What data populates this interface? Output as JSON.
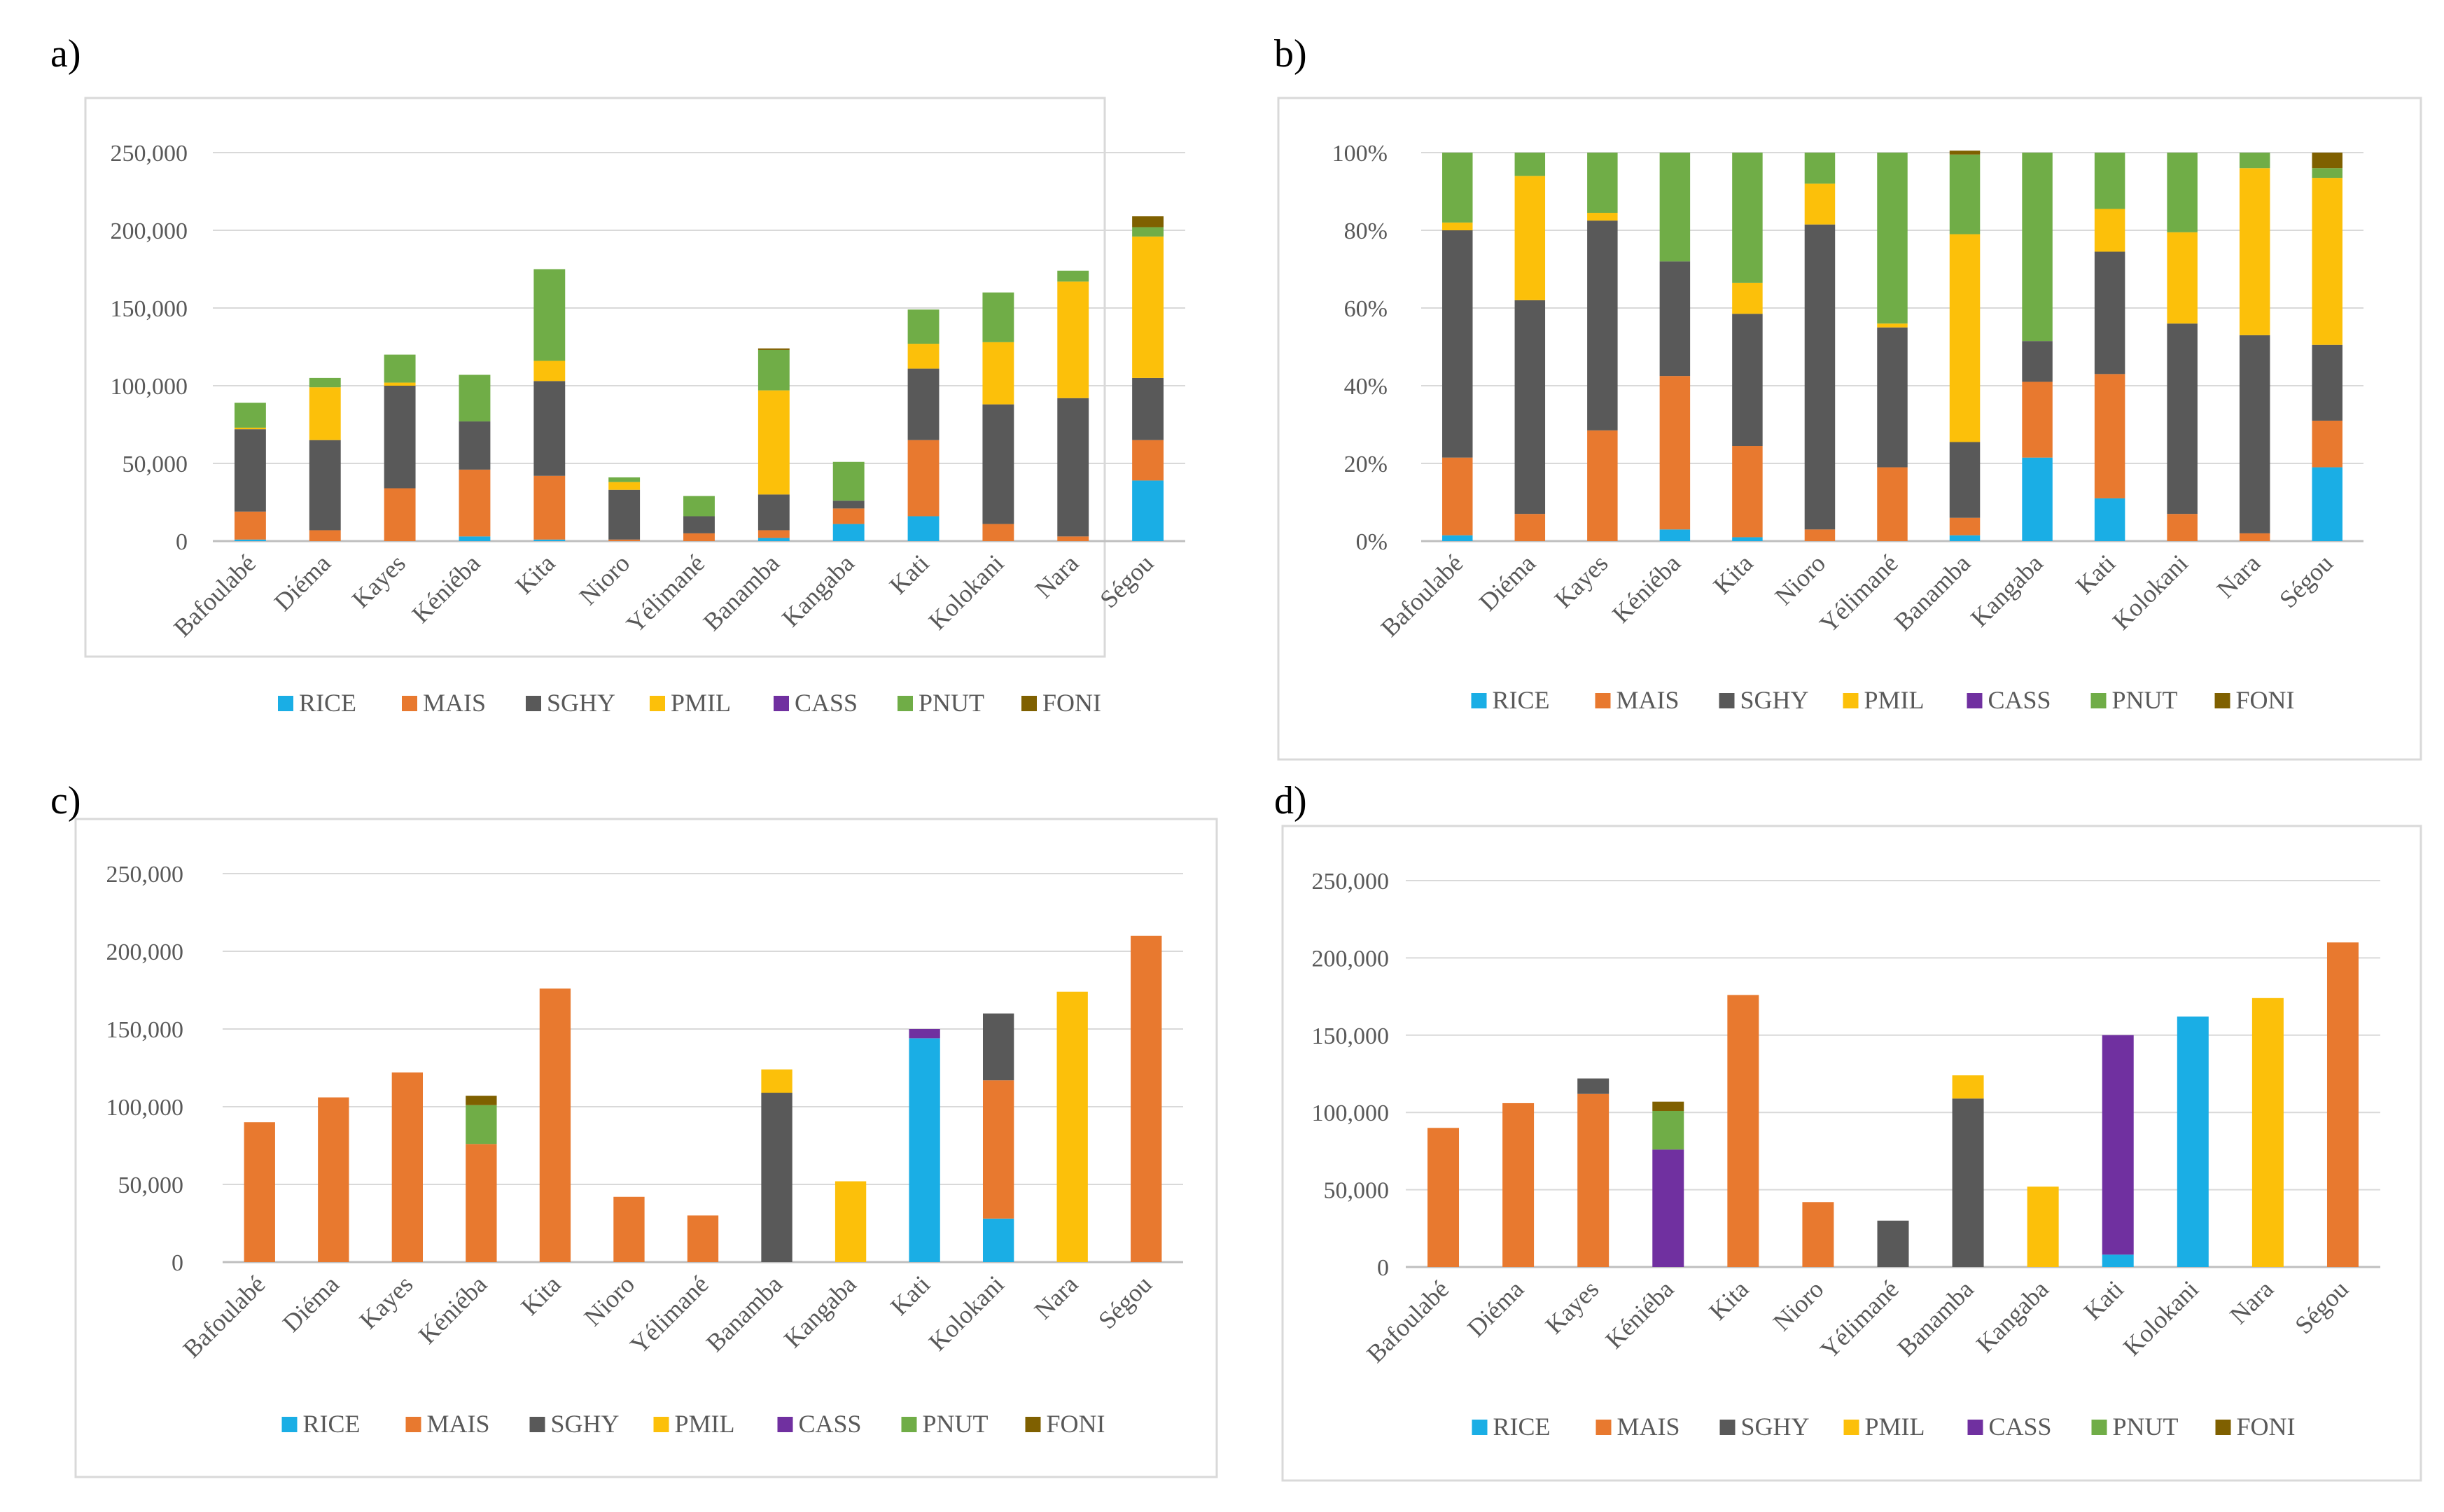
{
  "palette": {
    "RICE": "#1aaee5",
    "MAIS": "#e8792f",
    "SGHY": "#595959",
    "PMIL": "#fcc00a",
    "CASS": "#7030a0",
    "PNUT": "#70ad47",
    "FONI": "#7f6000"
  },
  "chart_data": [
    {
      "panel_label": "a)",
      "type": "bar",
      "stacked": true,
      "title": "",
      "xlabel": "",
      "ylabel": "",
      "ylim": [
        0,
        250000
      ],
      "yticks": [
        0,
        50000,
        100000,
        150000,
        200000,
        250000
      ],
      "ytick_labels": [
        "0",
        "50,000",
        "100,000",
        "150,000",
        "200,000",
        "250,000"
      ],
      "grid": true,
      "legend": "bottom",
      "categories": [
        "Bafoulabé",
        "Diéma",
        "Kayes",
        "Kéniéba",
        "Kita",
        "Nioro",
        "Yélimané",
        "Banamba",
        "Kangaba",
        "Kati",
        "Kolokani",
        "Nara",
        "Ségou"
      ],
      "series": [
        {
          "name": "RICE",
          "values": [
            1000,
            0,
            0,
            3000,
            1000,
            0,
            0,
            2000,
            11000,
            16000,
            0,
            0,
            39000
          ]
        },
        {
          "name": "MAIS",
          "values": [
            18000,
            7000,
            34000,
            43000,
            41000,
            1000,
            5000,
            5000,
            10000,
            49000,
            11000,
            3000,
            26000
          ]
        },
        {
          "name": "SGHY",
          "values": [
            53000,
            58000,
            66000,
            31000,
            61000,
            32000,
            11000,
            23000,
            5000,
            46000,
            77000,
            89000,
            40000
          ]
        },
        {
          "name": "PMIL",
          "values": [
            1000,
            34000,
            2000,
            0,
            13000,
            5000,
            0,
            67000,
            0,
            16000,
            40000,
            75000,
            91000
          ]
        },
        {
          "name": "CASS",
          "values": [
            0,
            0,
            0,
            0,
            0,
            0,
            0,
            0,
            0,
            0,
            0,
            0,
            0
          ]
        },
        {
          "name": "PNUT",
          "values": [
            16000,
            6000,
            18000,
            30000,
            59000,
            3000,
            13000,
            26000,
            25000,
            22000,
            32000,
            7000,
            6000
          ]
        },
        {
          "name": "FONI",
          "values": [
            0,
            0,
            0,
            0,
            0,
            0,
            0,
            1000,
            0,
            0,
            0,
            0,
            7000
          ]
        }
      ]
    },
    {
      "panel_label": "b)",
      "type": "bar",
      "stacked": true,
      "percent": true,
      "title": "",
      "xlabel": "",
      "ylabel": "",
      "ylim": [
        0,
        100
      ],
      "yticks": [
        0,
        20,
        40,
        60,
        80,
        100
      ],
      "ytick_labels": [
        "0%",
        "20%",
        "40%",
        "60%",
        "80%",
        "100%"
      ],
      "grid": true,
      "legend": "bottom",
      "categories": [
        "Bafoulabé",
        "Diéma",
        "Kayes",
        "Kéniéba",
        "Kita",
        "Nioro",
        "Yélimané",
        "Banamba",
        "Kangaba",
        "Kati",
        "Kolokani",
        "Nara",
        "Ségou"
      ],
      "series": [
        {
          "name": "RICE",
          "values": [
            1.5,
            0,
            0,
            3,
            1,
            0,
            0,
            1.5,
            21.5,
            11,
            0,
            0,
            19
          ]
        },
        {
          "name": "MAIS",
          "values": [
            20,
            7,
            28.5,
            39.5,
            23.5,
            3,
            19,
            4.5,
            19.5,
            32,
            7,
            2,
            12
          ]
        },
        {
          "name": "SGHY",
          "values": [
            58.5,
            55,
            54,
            29.5,
            34,
            78.5,
            36,
            19.5,
            10.5,
            31.5,
            49,
            51,
            19.5
          ]
        },
        {
          "name": "PMIL",
          "values": [
            2,
            32,
            2,
            0,
            8,
            10.5,
            1,
            53.5,
            0,
            11,
            23.5,
            43,
            43
          ]
        },
        {
          "name": "CASS",
          "values": [
            0,
            0,
            0,
            0,
            0,
            0,
            0,
            0,
            0,
            0,
            0,
            0,
            0
          ]
        },
        {
          "name": "PNUT",
          "values": [
            18,
            6,
            15.5,
            28,
            33.5,
            8,
            44,
            20.5,
            48.5,
            14.5,
            20.5,
            4,
            2.5
          ]
        },
        {
          "name": "FONI",
          "values": [
            0,
            0,
            0,
            0,
            0,
            0,
            0,
            1,
            0,
            0,
            0,
            0,
            4
          ]
        }
      ]
    },
    {
      "panel_label": "c)",
      "type": "bar",
      "stacked": true,
      "title": "",
      "xlabel": "",
      "ylabel": "",
      "ylim": [
        0,
        250000
      ],
      "yticks": [
        0,
        50000,
        100000,
        150000,
        200000,
        250000
      ],
      "ytick_labels": [
        "0",
        "50,000",
        "100,000",
        "150,000",
        "200,000",
        "250,000"
      ],
      "grid": true,
      "legend": "bottom",
      "categories": [
        "Bafoulabé",
        "Diéma",
        "Kayes",
        "Kéniéba",
        "Kita",
        "Nioro",
        "Yélimané",
        "Banamba",
        "Kangaba",
        "Kati",
        "Kolokani",
        "Nara",
        "Ségou"
      ],
      "series": [
        {
          "name": "RICE",
          "values": [
            0,
            0,
            0,
            0,
            0,
            0,
            0,
            0,
            0,
            144000,
            28000,
            0,
            0
          ]
        },
        {
          "name": "MAIS",
          "values": [
            90000,
            106000,
            122000,
            76000,
            176000,
            42000,
            30000,
            0,
            0,
            0,
            89000,
            0,
            210000
          ]
        },
        {
          "name": "SGHY",
          "values": [
            0,
            0,
            0,
            0,
            0,
            0,
            0,
            109000,
            0,
            0,
            43000,
            0,
            0
          ]
        },
        {
          "name": "PMIL",
          "values": [
            0,
            0,
            0,
            0,
            0,
            0,
            0,
            15000,
            52000,
            0,
            0,
            174000,
            0
          ]
        },
        {
          "name": "CASS",
          "values": [
            0,
            0,
            0,
            0,
            0,
            0,
            0,
            0,
            0,
            6000,
            0,
            0,
            0
          ]
        },
        {
          "name": "PNUT",
          "values": [
            0,
            0,
            0,
            25000,
            0,
            0,
            0,
            0,
            0,
            0,
            0,
            0,
            0
          ]
        },
        {
          "name": "FONI",
          "values": [
            0,
            0,
            0,
            6000,
            0,
            0,
            0,
            0,
            0,
            0,
            0,
            0,
            0
          ]
        }
      ]
    },
    {
      "panel_label": "d)",
      "type": "bar",
      "stacked": true,
      "title": "",
      "xlabel": "",
      "ylabel": "",
      "ylim": [
        0,
        250000
      ],
      "yticks": [
        0,
        50000,
        100000,
        150000,
        200000,
        250000
      ],
      "ytick_labels": [
        "0",
        "50,000",
        "100,000",
        "150,000",
        "200,000",
        "250,000"
      ],
      "grid": true,
      "legend": "bottom",
      "categories": [
        "Bafoulabé",
        "Diéma",
        "Kayes",
        "Kéniéba",
        "Kita",
        "Nioro",
        "Yélimané",
        "Banamba",
        "Kangaba",
        "Kati",
        "Kolokani",
        "Nara",
        "Ségou"
      ],
      "series": [
        {
          "name": "RICE",
          "values": [
            0,
            0,
            0,
            0,
            0,
            0,
            0,
            0,
            0,
            8000,
            162000,
            0,
            0
          ]
        },
        {
          "name": "MAIS",
          "values": [
            90000,
            106000,
            112000,
            0,
            176000,
            42000,
            0,
            0,
            0,
            0,
            0,
            0,
            210000
          ]
        },
        {
          "name": "SGHY",
          "values": [
            0,
            0,
            10000,
            0,
            0,
            0,
            30000,
            109000,
            0,
            0,
            0,
            0,
            0
          ]
        },
        {
          "name": "PMIL",
          "values": [
            0,
            0,
            0,
            0,
            0,
            0,
            0,
            15000,
            52000,
            0,
            0,
            174000,
            0
          ]
        },
        {
          "name": "CASS",
          "values": [
            0,
            0,
            0,
            76000,
            0,
            0,
            0,
            0,
            0,
            142000,
            0,
            0,
            0
          ]
        },
        {
          "name": "PNUT",
          "values": [
            0,
            0,
            0,
            25000,
            0,
            0,
            0,
            0,
            0,
            0,
            0,
            0,
            0
          ]
        },
        {
          "name": "FONI",
          "values": [
            0,
            0,
            0,
            6000,
            0,
            0,
            0,
            0,
            0,
            0,
            0,
            0,
            0
          ]
        }
      ]
    }
  ]
}
